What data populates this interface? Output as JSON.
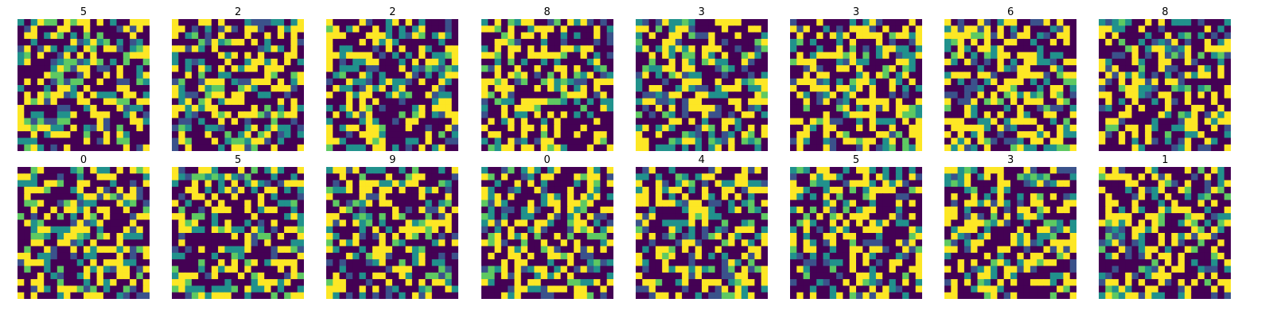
{
  "chart_data": {
    "type": "heatmap",
    "layout": {
      "rows": 2,
      "cols": 8
    },
    "grid_size": 20,
    "value_range": [
      0,
      4
    ],
    "colormap": [
      "#440154",
      "#3b528b",
      "#21918c",
      "#5ec962",
      "#fde725"
    ],
    "axes": "off",
    "panels": [
      {
        "title": "5"
      },
      {
        "title": "2"
      },
      {
        "title": "2"
      },
      {
        "title": "8"
      },
      {
        "title": "3"
      },
      {
        "title": "3"
      },
      {
        "title": "6"
      },
      {
        "title": "8"
      },
      {
        "title": "0"
      },
      {
        "title": "5"
      },
      {
        "title": "9"
      },
      {
        "title": "0"
      },
      {
        "title": "4"
      },
      {
        "title": "5"
      },
      {
        "title": "3"
      },
      {
        "title": "1"
      }
    ]
  }
}
